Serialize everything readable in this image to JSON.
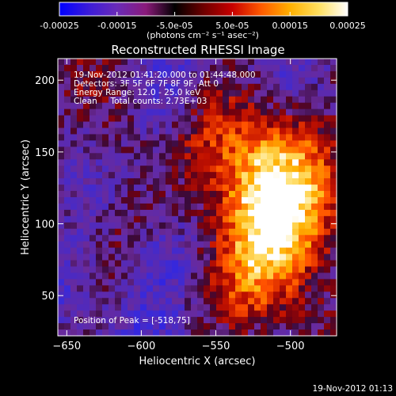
{
  "colorbar": {
    "tick_labels": [
      "-0.00025",
      "-0.00015",
      "-5.0e-05",
      "5.0e-05",
      "0.00015",
      "0.00025"
    ],
    "tick_values": [
      -0.00025,
      -0.00015,
      -5e-05,
      5e-05,
      0.00015,
      0.00025
    ],
    "range": [
      -0.00025,
      0.00025
    ],
    "unit_label": "(photons cm⁻² s⁻¹ asec⁻²)",
    "colors": [
      "#0000ff",
      "#3a1bd9",
      "#6a2bb8",
      "#8a1a7a",
      "#000000",
      "#6e0000",
      "#c80000",
      "#ff5a00",
      "#ffb000",
      "#ffe060",
      "#ffffff"
    ]
  },
  "chart_data": {
    "type": "heatmap",
    "title": "Reconstructed RHESSI Image",
    "xlabel": "Heliocentric X (arcsec)",
    "ylabel": "Heliocentric Y (arcsec)",
    "xlim": [
      -656,
      -469
    ],
    "ylim": [
      22,
      215
    ],
    "x_ticks": [
      -650,
      -600,
      -550,
      -500
    ],
    "y_ticks": [
      50,
      100,
      150,
      200
    ],
    "annotations": [
      "19-Nov-2012 01:41:20.000 to 01:44:48.000",
      "Detectors: 3F 5F 6F 7F 8F 9F, Att 0",
      "Energy Range: 12.0 - 25.0 keV",
      "Clean     Total counts: 2.73E+03"
    ],
    "peak_label": "Position of Peak = [-518,75]",
    "peak": [
      -518,
      75
    ],
    "grid": false
  },
  "footer": {
    "timestamp": "19-Nov-2012 01:13"
  }
}
